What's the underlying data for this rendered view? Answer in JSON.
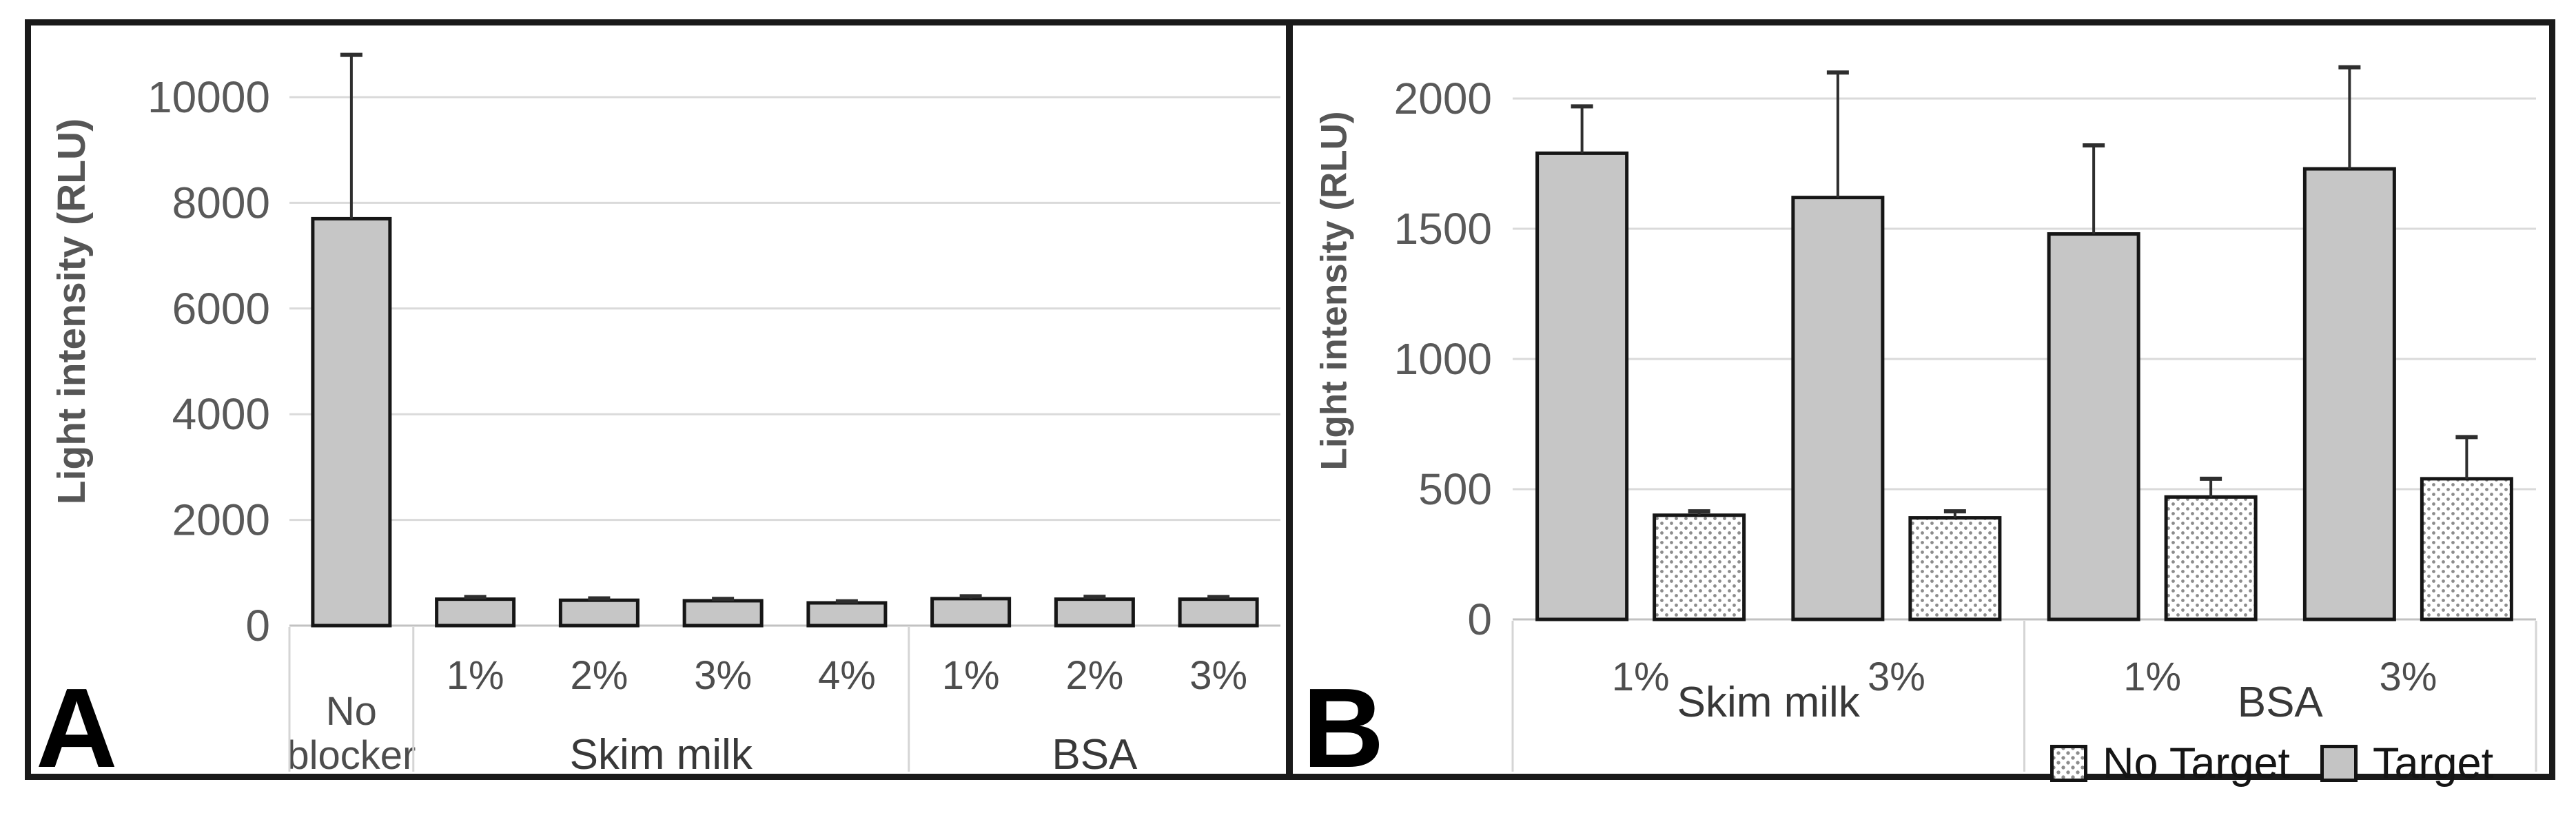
{
  "figure": {
    "background": "#ffffff",
    "border_color": "#1a1a1a",
    "grid_color": "#dadada",
    "axis_color": "#c2c2c2",
    "bar_fill": "#c6c6c6",
    "bar_stroke": "#161616",
    "dot_fill": "#8c8c8c",
    "tick_label_color": "#595959",
    "category_label_color": "#4d4d4d",
    "group_label_color": "#383838"
  },
  "chart_data": [
    {
      "panel_letter": "A",
      "type": "bar",
      "title": "",
      "xlabel": "",
      "ylabel": "Light intensity (RLU)",
      "ylim": [
        0,
        11000
      ],
      "yticks": [
        0,
        2000,
        4000,
        6000,
        8000,
        10000
      ],
      "grid": true,
      "legend_position": "none",
      "groups": [
        {
          "label": "No blocker",
          "label_lines": [
            "No",
            "blocker"
          ],
          "bars": [
            {
              "label": "",
              "value": 7700,
              "error": 3100,
              "style": "solid"
            }
          ]
        },
        {
          "label": "Skim milk",
          "bars": [
            {
              "label": "1%",
              "value": 500,
              "error": 40,
              "style": "solid"
            },
            {
              "label": "2%",
              "value": 480,
              "error": 35,
              "style": "solid"
            },
            {
              "label": "3%",
              "value": 470,
              "error": 35,
              "style": "solid"
            },
            {
              "label": "4%",
              "value": 430,
              "error": 30,
              "style": "solid"
            }
          ]
        },
        {
          "label": "BSA",
          "bars": [
            {
              "label": "1%",
              "value": 510,
              "error": 45,
              "style": "solid"
            },
            {
              "label": "2%",
              "value": 500,
              "error": 45,
              "style": "solid"
            },
            {
              "label": "3%",
              "value": 500,
              "error": 40,
              "style": "solid"
            }
          ]
        }
      ]
    },
    {
      "panel_letter": "B",
      "type": "bar",
      "title": "",
      "xlabel": "",
      "ylabel": "Light intensity (RLU)",
      "ylim": [
        0,
        2150
      ],
      "yticks": [
        0,
        500,
        1000,
        1500,
        2000
      ],
      "grid": true,
      "legend_position": "bottom-right",
      "series": [
        {
          "name": "Target",
          "style": "solid"
        },
        {
          "name": "No Target",
          "style": "dotted"
        }
      ],
      "groups": [
        {
          "label": "Skim milk",
          "clusters": [
            {
              "label": "1%",
              "target": {
                "value": 1790,
                "error": 180
              },
              "no_target": {
                "value": 400,
                "error": 15
              }
            },
            {
              "label": "3%",
              "target": {
                "value": 1620,
                "error": 480
              },
              "no_target": {
                "value": 390,
                "error": 25
              }
            }
          ]
        },
        {
          "label": "BSA",
          "clusters": [
            {
              "label": "1%",
              "target": {
                "value": 1480,
                "error": 340
              },
              "no_target": {
                "value": 470,
                "error": 70
              }
            },
            {
              "label": "3%",
              "target": {
                "value": 1730,
                "error": 390
              },
              "no_target": {
                "value": 540,
                "error": 160
              }
            }
          ]
        }
      ],
      "legend": [
        {
          "label": "No Target",
          "style": "dotted"
        },
        {
          "label": "Target",
          "style": "solid"
        }
      ]
    }
  ]
}
